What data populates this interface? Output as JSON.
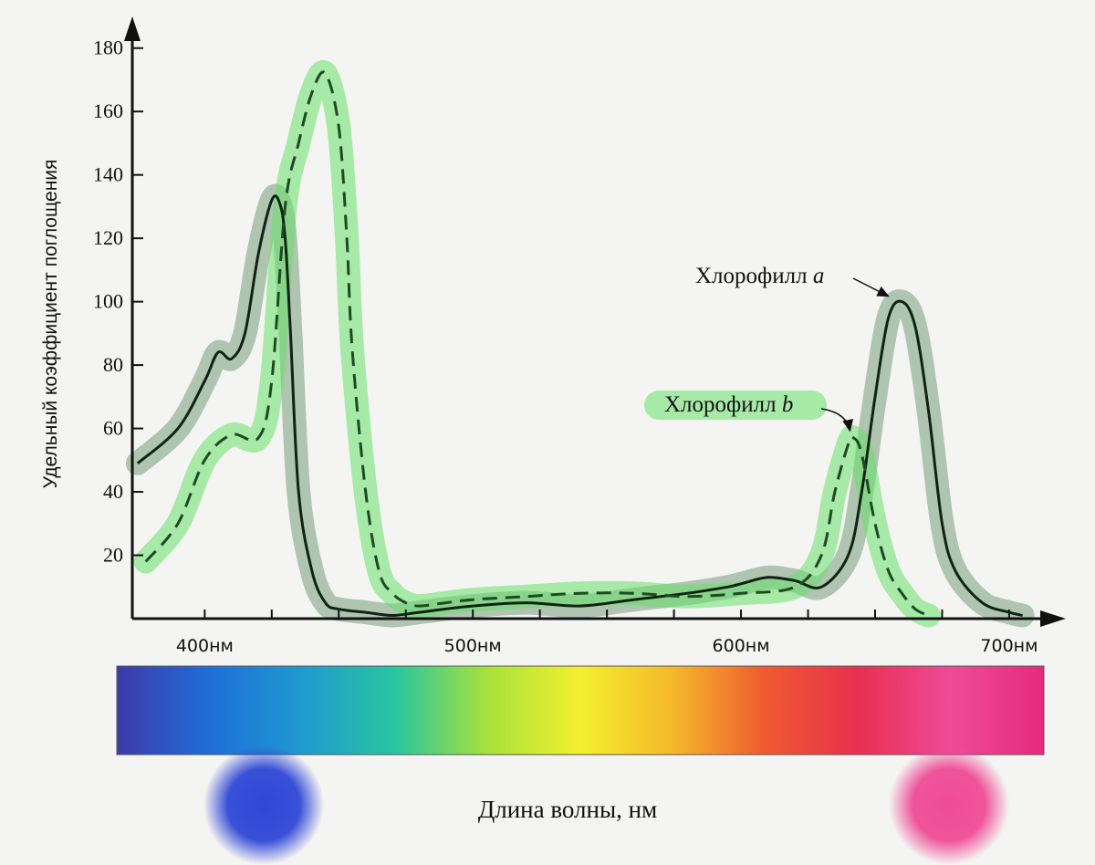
{
  "chart_data": {
    "type": "line",
    "title": "",
    "xlabel": "Длина волны, нм",
    "ylabel": "Удельный коэффициент поглощения",
    "xlim": [
      373,
      715
    ],
    "ylim": [
      0,
      190
    ],
    "yticks": [
      20,
      40,
      60,
      80,
      100,
      120,
      140,
      160,
      180
    ],
    "xticks": [
      {
        "value": 400,
        "label": "400нм"
      },
      {
        "value": 500,
        "label": "500нм"
      },
      {
        "value": 600,
        "label": "600нм"
      },
      {
        "value": 700,
        "label": "700нм"
      }
    ],
    "grid": false,
    "series": [
      {
        "name": "Хлорофилл a",
        "line_style": "solid",
        "x": [
          375,
          390,
          400,
          405,
          410,
          415,
          420,
          425,
          428,
          430,
          432,
          435,
          440,
          445,
          450,
          460,
          470,
          480,
          500,
          520,
          540,
          560,
          580,
          595,
          600,
          610,
          620,
          630,
          640,
          645,
          650,
          655,
          660,
          665,
          670,
          675,
          680,
          690,
          700,
          705
        ],
        "y": [
          49,
          60,
          75,
          84,
          82,
          90,
          115,
          132,
          131,
          120,
          90,
          40,
          15,
          5,
          3,
          2,
          1,
          2,
          4,
          5,
          4,
          6,
          8,
          10,
          11,
          13,
          12,
          10,
          20,
          40,
          70,
          95,
          100,
          92,
          65,
          30,
          15,
          5,
          2,
          1
        ]
      },
      {
        "name": "Хлорофилл b",
        "line_style": "dashed",
        "x": [
          378,
          390,
          400,
          410,
          420,
          425,
          430,
          435,
          440,
          445,
          450,
          453,
          455,
          460,
          465,
          470,
          475,
          480,
          490,
          500,
          520,
          540,
          560,
          580,
          600,
          620,
          630,
          635,
          640,
          642,
          645,
          650,
          655,
          660,
          665,
          670
        ],
        "y": [
          18,
          30,
          50,
          58,
          57,
          75,
          130,
          150,
          166,
          172,
          155,
          120,
          85,
          40,
          15,
          8,
          5,
          4,
          5,
          6,
          7,
          8,
          8,
          7,
          8,
          10,
          20,
          40,
          55,
          57,
          52,
          30,
          15,
          8,
          3,
          1
        ]
      }
    ],
    "annotations": [
      {
        "text_main": "Хлорофилл ",
        "text_italic": "a",
        "points_to": {
          "x": 657,
          "y": 100
        }
      },
      {
        "text_main": "Хлорофилл ",
        "text_italic": "b",
        "points_to": {
          "x": 642,
          "y": 57
        }
      }
    ],
    "spectrum_bar": {
      "colors": [
        "#3d3aa8",
        "#1f6ed8",
        "#1f9ad0",
        "#28c6a0",
        "#a8e23a",
        "#f3ef2e",
        "#f6b82a",
        "#ef5a30",
        "#e83050",
        "#ef4a9a",
        "#e62a7c"
      ]
    },
    "highlight_color": "#67e06a",
    "blue_circle_color": "#2f47d6",
    "pink_circle_color": "#ef4c96"
  }
}
